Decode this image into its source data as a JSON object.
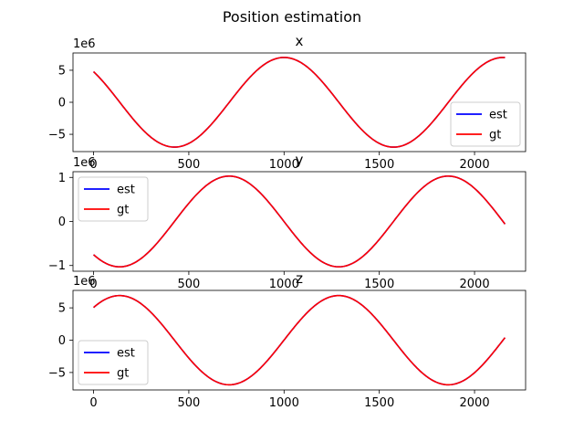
{
  "figure_title": "Position estimation",
  "colors": {
    "est": "#0000ff",
    "gt": "#ff0000",
    "axes": "#000000",
    "background": "#ffffff"
  },
  "chart_data": [
    {
      "type": "line",
      "title": "x",
      "xlabel": "",
      "ylabel": "",
      "offset_text": "1e6",
      "xlim": [
        -108,
        2268
      ],
      "ylim": [
        -7.7,
        7.7
      ],
      "xticks": [
        0,
        500,
        1000,
        1500,
        2000
      ],
      "yticks": [
        -5,
        0,
        5
      ],
      "legend_position": "lower right",
      "grid": false,
      "signal": {
        "kind": "cosine",
        "amplitude": 7.0,
        "period": 1150,
        "peak_x": 1000,
        "x_end": 2160,
        "unit": "1e6"
      },
      "series": [
        {
          "name": "est",
          "color": "#0000ff"
        },
        {
          "name": "gt",
          "color": "#ff0000"
        }
      ]
    },
    {
      "type": "line",
      "title": "y",
      "xlabel": "",
      "ylabel": "",
      "offset_text": "1e6",
      "xlim": [
        -108,
        2268
      ],
      "ylim": [
        -1.13,
        1.13
      ],
      "xticks": [
        0,
        500,
        1000,
        1500,
        2000
      ],
      "yticks": [
        -1,
        0,
        1
      ],
      "legend_position": "upper left",
      "grid": false,
      "signal": {
        "kind": "cosine",
        "amplitude": 1.03,
        "period": 1150,
        "peak_x": 712,
        "x_end": 2160,
        "unit": "1e6"
      },
      "series": [
        {
          "name": "est",
          "color": "#0000ff"
        },
        {
          "name": "gt",
          "color": "#ff0000"
        }
      ]
    },
    {
      "type": "line",
      "title": "z",
      "xlabel": "",
      "ylabel": "",
      "offset_text": "1e6",
      "xlim": [
        -108,
        2268
      ],
      "ylim": [
        -7.7,
        7.7
      ],
      "xticks": [
        0,
        500,
        1000,
        1500,
        2000
      ],
      "yticks": [
        -5,
        0,
        5
      ],
      "legend_position": "lower left",
      "grid": false,
      "signal": {
        "kind": "cosine",
        "amplitude": 6.9,
        "period": 1150,
        "peak_x": 137,
        "x_end": 2160,
        "unit": "1e6"
      },
      "series": [
        {
          "name": "est",
          "color": "#0000ff"
        },
        {
          "name": "gt",
          "color": "#ff0000"
        }
      ]
    }
  ]
}
